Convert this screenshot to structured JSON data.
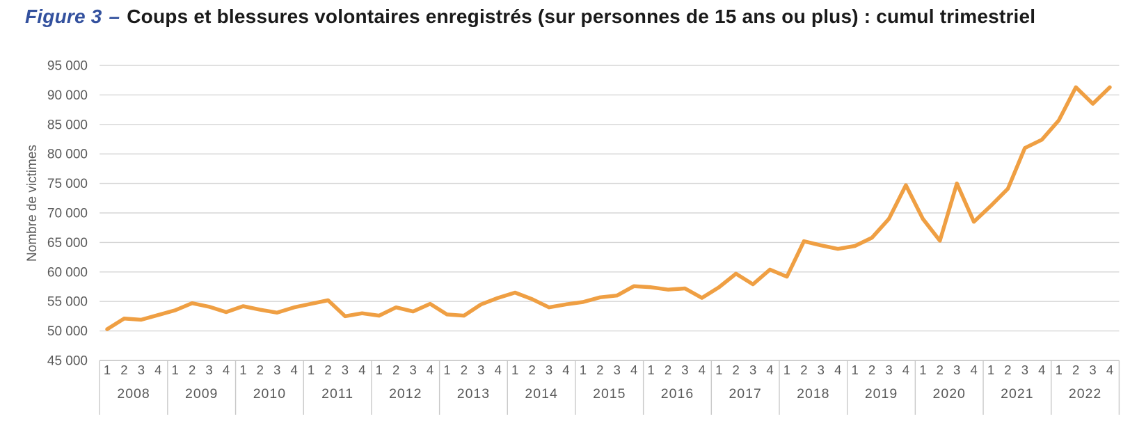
{
  "title": {
    "figure_label": "Figure 3",
    "separator": "–",
    "text": "Coups et blessures volontaires enregistrés (sur personnes de 15 ans ou plus) : cumul trimestriel"
  },
  "colors": {
    "line": "#EF9F43",
    "figure_label": "#33519E",
    "title_text": "#1A1A1A",
    "axis_text": "#595959",
    "gridline": "#D6D6D6",
    "separator": "#C9C9C9",
    "axis_line": "#BFBFBF",
    "background": "#FFFFFF"
  },
  "chart_data": {
    "type": "line",
    "title": "Coups et blessures volontaires enregistrés (sur personnes de 15 ans ou plus) : cumul trimestriel",
    "xlabel": "",
    "ylabel": "Nombre de victimes",
    "ylim": [
      45000,
      95000
    ],
    "grid": true,
    "legend": "none",
    "ytick_values": [
      45000,
      50000,
      55000,
      60000,
      65000,
      70000,
      75000,
      80000,
      85000,
      90000,
      95000
    ],
    "ytick_labels": [
      "45 000",
      "50 000",
      "55 000",
      "60 000",
      "65 000",
      "70 000",
      "75 000",
      "80 000",
      "85 000",
      "90 000",
      "95 000"
    ],
    "quarter_labels": [
      "1",
      "2",
      "3",
      "4"
    ],
    "years": [
      "2008",
      "2009",
      "2010",
      "2011",
      "2012",
      "2013",
      "2014",
      "2015",
      "2016",
      "2017",
      "2018",
      "2019",
      "2020",
      "2021",
      "2022"
    ],
    "series": [
      {
        "name": "Nombre de victimes (cumul trimestriel)",
        "color": "#EF9F43",
        "values": [
          50300,
          52100,
          51900,
          52700,
          53500,
          54700,
          54100,
          53200,
          54200,
          53600,
          53100,
          54000,
          54600,
          55200,
          52500,
          53000,
          52600,
          54000,
          53300,
          54600,
          52800,
          52600,
          54500,
          55600,
          56500,
          55400,
          54000,
          54500,
          54900,
          55700,
          56000,
          57600,
          57400,
          57000,
          57200,
          55600,
          57400,
          59700,
          57900,
          60400,
          59200,
          65200,
          64500,
          63900,
          64400,
          65800,
          69000,
          74700,
          69000,
          65300,
          75000,
          68500,
          71200,
          74100,
          81000,
          82400,
          85700,
          91300,
          88500,
          91300
        ]
      }
    ]
  }
}
